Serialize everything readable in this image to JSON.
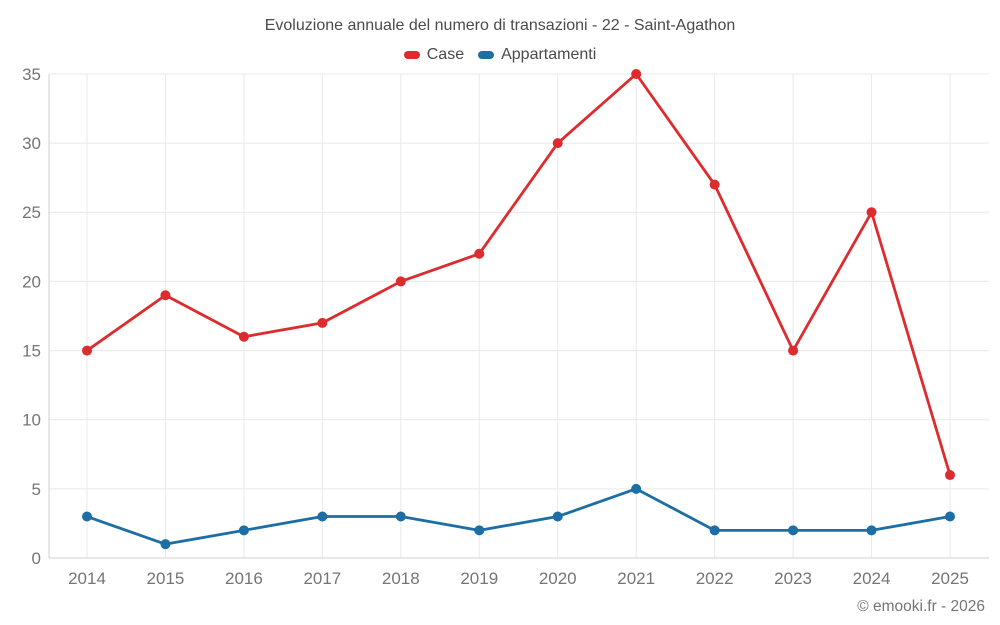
{
  "header": {
    "title": "Evoluzione annuale del numero di transazioni - 22 - Saint-Agathon"
  },
  "footer": {
    "credit": "© emooki.fr - 2026"
  },
  "colors": {
    "background": "#ffffff",
    "grid": "#e9e9e9",
    "axis": "#d2d2d2",
    "tick_label": "#757575",
    "title_text": "#4b4b4b",
    "case_red": "#dd2b2e",
    "appartamenti_blue": "#1c6ea4"
  },
  "chart_data": {
    "type": "line",
    "title": "Evoluzione annuale del numero di transazioni - 22 - Saint-Agathon",
    "xlabel": "",
    "ylabel": "",
    "categories": [
      "2014",
      "2015",
      "2016",
      "2017",
      "2018",
      "2019",
      "2020",
      "2021",
      "2022",
      "2023",
      "2024",
      "2025"
    ],
    "series": [
      {
        "name": "Case",
        "color": "#dd2b2e",
        "values": [
          15,
          19,
          16,
          17,
          20,
          22,
          30,
          35,
          27,
          15,
          25,
          6
        ]
      },
      {
        "name": "Appartamenti",
        "color": "#1c6ea4",
        "values": [
          3,
          1,
          2,
          3,
          3,
          2,
          3,
          5,
          2,
          2,
          2,
          3
        ]
      }
    ],
    "ylim": [
      0,
      35
    ],
    "yticks": [
      0,
      5,
      10,
      15,
      20,
      25,
      30,
      35
    ],
    "grid": true,
    "legend_position": "top"
  }
}
